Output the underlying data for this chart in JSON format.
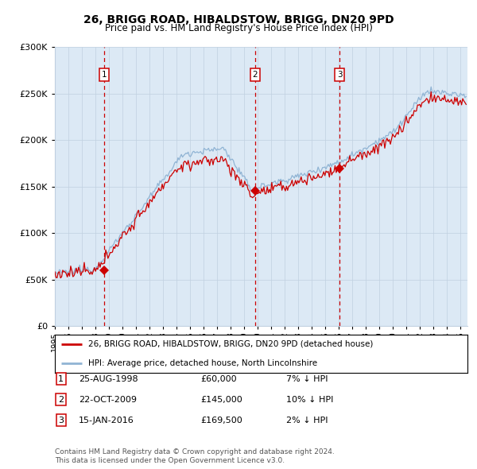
{
  "title": "26, BRIGG ROAD, HIBALDSTOW, BRIGG, DN20 9PD",
  "subtitle": "Price paid vs. HM Land Registry's House Price Index (HPI)",
  "bg_color": "#dce9f5",
  "hpi_color": "#90b4d4",
  "price_color": "#cc0000",
  "grid_color": "#c0d0e0",
  "ylim": [
    0,
    300000
  ],
  "yticks": [
    0,
    50000,
    100000,
    150000,
    200000,
    250000,
    300000
  ],
  "sales": [
    {
      "date_str": "25-AUG-1998",
      "date_num": 1998.646,
      "price": 60000,
      "label": "1",
      "pct": "7%",
      "dir": "↓"
    },
    {
      "date_str": "22-OCT-2009",
      "date_num": 2009.808,
      "price": 145000,
      "label": "2",
      "pct": "10%",
      "dir": "↓"
    },
    {
      "date_str": "15-JAN-2016",
      "date_num": 2016.038,
      "price": 169500,
      "label": "3",
      "pct": "2%",
      "dir": "↓"
    }
  ],
  "legend_line1": "26, BRIGG ROAD, HIBALDSTOW, BRIGG, DN20 9PD (detached house)",
  "legend_line2": "HPI: Average price, detached house, North Lincolnshire",
  "footnote1": "Contains HM Land Registry data © Crown copyright and database right 2024.",
  "footnote2": "This data is licensed under the Open Government Licence v3.0.",
  "xstart": 1995.0,
  "xend": 2025.5
}
